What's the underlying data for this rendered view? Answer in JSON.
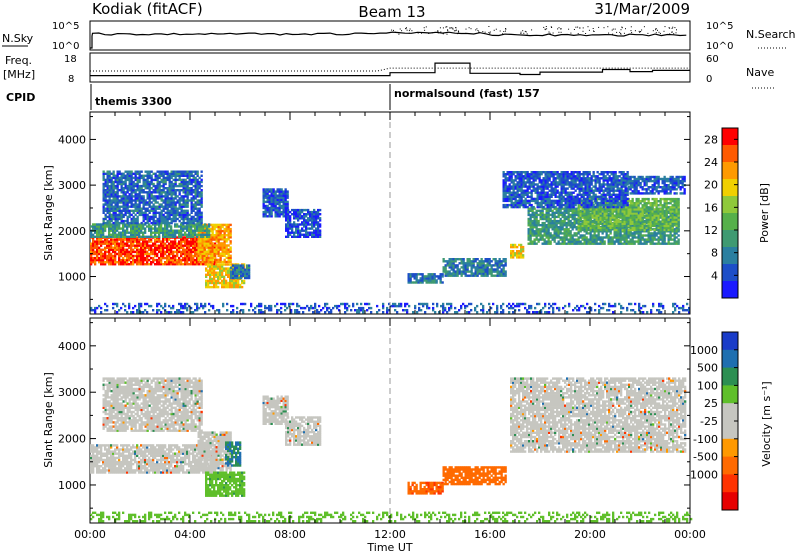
{
  "header": {
    "station": "Kodiak (fitACF)",
    "beam": "Beam 13",
    "date": "31/Mar/2009"
  },
  "top_panels": {
    "nsky_label": "N.Sky",
    "nsky_ticks": [
      "10^5",
      "10^0"
    ],
    "nsearch_label": "N.Search",
    "nsearch_ticks": [
      "10^5",
      "10^0"
    ],
    "freq_label": [
      "Freq.",
      "[MHz]"
    ],
    "freq_ticks": [
      "18",
      "8"
    ],
    "nave_label": "Nave",
    "nave_ticks": [
      "60",
      "0"
    ],
    "cpid_label": "CPID",
    "modes": [
      {
        "name": "themis 3300",
        "start_hour": 0
      },
      {
        "name": "normalsound (fast) 157",
        "start_hour": 12
      }
    ]
  },
  "colors": {
    "power_scale": [
      "#1a1aff",
      "#1c4ec8",
      "#2a7fa0",
      "#3f9a72",
      "#56b04a",
      "#8fc93a",
      "#f0d000",
      "#ff9a00",
      "#ff5a00",
      "#ff0000"
    ],
    "velocity_scale": [
      "#1a3cc8",
      "#1f6fb0",
      "#2c8f52",
      "#5fbf2a",
      "#c6c6c0",
      "#c6c6c0",
      "#ff9900",
      "#ff6a00",
      "#ff3300",
      "#e60000"
    ]
  },
  "chart_data": [
    {
      "type": "heatmap",
      "title": "Power",
      "xlabel": "Time UT",
      "ylabel": "Slant Range [km]",
      "xlim": [
        0,
        24
      ],
      "ylim": [
        180,
        4600
      ],
      "x_ticks": [
        "00:00",
        "04:00",
        "08:00",
        "12:00",
        "16:00",
        "20:00",
        "00:00"
      ],
      "y_ticks": [
        1000,
        2000,
        3000,
        4000
      ],
      "colorbar": {
        "label": "Power [dB]",
        "ticks": [
          4,
          8,
          12,
          16,
          20,
          24,
          28
        ],
        "range": [
          0,
          30
        ]
      },
      "regions": [
        {
          "t0": 0.0,
          "t1": 5.0,
          "r0": 1250,
          "r1": 1850,
          "value": 27
        },
        {
          "t0": 4.3,
          "t1": 5.6,
          "r0": 1300,
          "r1": 2150,
          "value": 22
        },
        {
          "t0": 4.6,
          "t1": 6.2,
          "r0": 750,
          "r1": 1250,
          "value": 20
        },
        {
          "t0": 5.6,
          "t1": 6.4,
          "r0": 950,
          "r1": 1250,
          "value": 7
        },
        {
          "t0": 0.0,
          "t1": 4.8,
          "r0": 1850,
          "r1": 2150,
          "value": 10
        },
        {
          "t0": 0.5,
          "t1": 4.5,
          "r0": 2150,
          "r1": 3300,
          "value": 6
        },
        {
          "t0": 6.9,
          "t1": 7.9,
          "r0": 2300,
          "r1": 2900,
          "value": 5
        },
        {
          "t0": 7.8,
          "t1": 9.2,
          "r0": 1850,
          "r1": 2450,
          "value": 4
        },
        {
          "t0": 12.7,
          "t1": 14.1,
          "r0": 850,
          "r1": 1050,
          "value": 7
        },
        {
          "t0": 14.1,
          "t1": 16.6,
          "r0": 1000,
          "r1": 1400,
          "value": 8
        },
        {
          "t0": 16.8,
          "t1": 17.3,
          "r0": 1400,
          "r1": 1700,
          "value": 20
        },
        {
          "t0": 17.5,
          "t1": 23.5,
          "r0": 1700,
          "r1": 2500,
          "value": 10
        },
        {
          "t0": 19.5,
          "t1": 23.5,
          "r0": 2000,
          "r1": 2700,
          "value": 14
        },
        {
          "t0": 16.5,
          "t1": 21.5,
          "r0": 2500,
          "r1": 3300,
          "value": 5
        },
        {
          "t0": 21.5,
          "t1": 23.8,
          "r0": 2800,
          "r1": 3200,
          "value": 5
        },
        {
          "t0": 0.0,
          "t1": 24.0,
          "r0": 200,
          "r1": 420,
          "value": 5
        }
      ]
    },
    {
      "type": "heatmap",
      "title": "Velocity",
      "xlabel": "Time UT",
      "ylabel": "Slant Range [km]",
      "xlim": [
        0,
        24
      ],
      "ylim": [
        180,
        4600
      ],
      "x_ticks": [
        "00:00",
        "04:00",
        "08:00",
        "12:00",
        "16:00",
        "20:00",
        "00:00"
      ],
      "y_ticks": [
        1000,
        2000,
        3000,
        4000
      ],
      "colorbar": {
        "label": "Velocity [m s⁻¹]",
        "ticks": [
          "1000",
          "500",
          "100",
          "25",
          "-25",
          "-100",
          "-500",
          "-1000"
        ]
      },
      "regions": [
        {
          "t0": 0.0,
          "t1": 5.0,
          "r0": 1250,
          "r1": 1850,
          "value": 0
        },
        {
          "t0": 4.3,
          "t1": 5.6,
          "r0": 1300,
          "r1": 2150,
          "value": 0
        },
        {
          "t0": 4.6,
          "t1": 6.2,
          "r0": 750,
          "r1": 1250,
          "value": 80
        },
        {
          "t0": 5.4,
          "t1": 6.0,
          "r0": 1400,
          "r1": 1900,
          "value": 300
        },
        {
          "t0": 0.5,
          "t1": 4.5,
          "r0": 2150,
          "r1": 3300,
          "value": 0
        },
        {
          "t0": 6.9,
          "t1": 7.9,
          "r0": 2300,
          "r1": 2900,
          "value": 0
        },
        {
          "t0": 7.8,
          "t1": 9.2,
          "r0": 1850,
          "r1": 2450,
          "value": 0
        },
        {
          "t0": 12.7,
          "t1": 14.1,
          "r0": 800,
          "r1": 1050,
          "value": -250
        },
        {
          "t0": 14.1,
          "t1": 16.6,
          "r0": 1000,
          "r1": 1400,
          "value": -200
        },
        {
          "t0": 16.8,
          "t1": 23.8,
          "r0": 1700,
          "r1": 3300,
          "value": 0
        },
        {
          "t0": 0.0,
          "t1": 24.0,
          "r0": 200,
          "r1": 420,
          "value": 60
        }
      ]
    }
  ]
}
